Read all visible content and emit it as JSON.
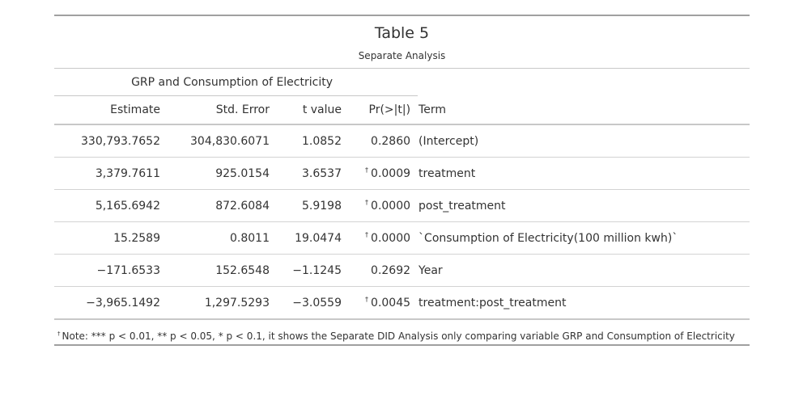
{
  "table": {
    "title": "Table 5",
    "subtitle": "Separate Analysis",
    "spanner": "GRP and Consumption of Electricity",
    "columns": [
      "Estimate",
      "Std. Error",
      "t value",
      "Pr(>|t|)",
      "Term"
    ],
    "footnote_mark": "†",
    "rows": [
      {
        "estimate": "330,793.7652",
        "std_error": "304,830.6071",
        "t_value": "1.0852",
        "mark": "",
        "p": "0.2860",
        "term": "(Intercept)"
      },
      {
        "estimate": "3,379.7611",
        "std_error": "925.0154",
        "t_value": "3.6537",
        "mark": "†",
        "p": "0.0009",
        "term": "treatment"
      },
      {
        "estimate": "5,165.6942",
        "std_error": "872.6084",
        "t_value": "5.9198",
        "mark": "†",
        "p": "0.0000",
        "term": "post_treatment"
      },
      {
        "estimate": "15.2589",
        "std_error": "0.8011",
        "t_value": "19.0474",
        "mark": "†",
        "p": "0.0000",
        "term": "`Consumption of Electricity(100 million kwh)`"
      },
      {
        "estimate": "−171.6533",
        "std_error": "152.6548",
        "t_value": "−1.1245",
        "mark": "",
        "p": "0.2692",
        "term": "Year"
      },
      {
        "estimate": "−3,965.1492",
        "std_error": "1,297.5293",
        "t_value": "−3.0559",
        "mark": "†",
        "p": "0.0045",
        "term": "treatment:post_treatment"
      }
    ],
    "note": "Note: *** p < 0.01, ** p < 0.05, * p < 0.1, it shows the Separate DID Analysis only comparing variable GRP and Consumption of Electricity"
  }
}
